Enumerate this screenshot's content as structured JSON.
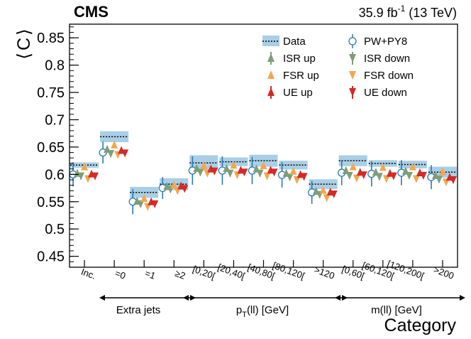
{
  "header": {
    "experiment": "CMS",
    "lumi_label": "35.9 fb",
    "lumi_sup": "-1",
    "energy": "(13 TeV)"
  },
  "chart_data": {
    "type": "scatter",
    "ylabel_open": "⟨",
    "ylabel_var": "C",
    "ylabel_close": "⟩",
    "xlabel": "Category",
    "ylim": [
      0.43,
      0.875
    ],
    "yticks": [
      0.45,
      0.5,
      0.55,
      0.6,
      0.65,
      0.7,
      0.75,
      0.8,
      0.85
    ],
    "ytick_labels": [
      "0.45",
      "0.5",
      "0.55",
      "0.6",
      "0.65",
      "0.7",
      "0.75",
      "0.8",
      "0.85"
    ],
    "categories": [
      "Inc.",
      "=0",
      "=1",
      "≥2",
      "[0,20[",
      "[20,40[",
      "[40,80[",
      "[80,120[",
      ">120",
      "[0,60[",
      "[60,120[",
      "[120,200[",
      ">200"
    ],
    "groups": [
      {
        "label": "Extra jets",
        "first": 1,
        "last": 3
      },
      {
        "label_main": "p",
        "label_sub": "T",
        "label_rest": "(ll) [GeV]",
        "first": 4,
        "last": 8
      },
      {
        "label": "m(ll) [GeV]",
        "first": 9,
        "last": 12
      }
    ],
    "data": {
      "name": "Data",
      "values": [
        0.617,
        0.669,
        0.567,
        0.582,
        0.621,
        0.623,
        0.625,
        0.617,
        0.582,
        0.625,
        0.62,
        0.618,
        0.604
      ],
      "unc": [
        0.005,
        0.01,
        0.01,
        0.011,
        0.014,
        0.008,
        0.011,
        0.008,
        0.009,
        0.01,
        0.006,
        0.007,
        0.01
      ]
    },
    "series": [
      {
        "name": "PW+PY8",
        "marker": "open-circle",
        "color": "#2a79b3",
        "values": [
          0.6,
          0.64,
          0.55,
          0.575,
          0.607,
          0.607,
          0.607,
          0.599,
          0.567,
          0.603,
          0.601,
          0.603,
          0.595
        ],
        "err": [
          0.022,
          0.02,
          0.023,
          0.02,
          0.026,
          0.026,
          0.025,
          0.023,
          0.021,
          0.023,
          0.023,
          0.023,
          0.022
        ]
      },
      {
        "name": "ISR up",
        "marker": "triangle-up",
        "color": "#7d9e79",
        "values": [
          0.602,
          0.646,
          0.551,
          0.578,
          0.611,
          0.611,
          0.61,
          0.602,
          0.569,
          0.607,
          0.604,
          0.606,
          0.598
        ],
        "err": [
          0.006,
          0.006,
          0.006,
          0.006,
          0.006,
          0.006,
          0.006,
          0.006,
          0.006,
          0.006,
          0.006,
          0.006,
          0.006
        ]
      },
      {
        "name": "ISR down",
        "marker": "triangle-down",
        "color": "#7d9e79",
        "values": [
          0.597,
          0.638,
          0.546,
          0.573,
          0.604,
          0.602,
          0.602,
          0.595,
          0.563,
          0.598,
          0.596,
          0.598,
          0.591
        ],
        "err": [
          0.006,
          0.006,
          0.006,
          0.006,
          0.006,
          0.006,
          0.006,
          0.006,
          0.006,
          0.006,
          0.006,
          0.006,
          0.006
        ]
      },
      {
        "name": "FSR up",
        "marker": "triangle-up",
        "color": "#f4a64f",
        "values": [
          0.614,
          0.654,
          0.556,
          0.581,
          0.616,
          0.617,
          0.616,
          0.606,
          0.571,
          0.614,
          0.613,
          0.614,
          0.605
        ],
        "err": [
          0.0,
          0.0,
          0.0,
          0.0,
          0.0,
          0.0,
          0.0,
          0.0,
          0.0,
          0.0,
          0.0,
          0.0,
          0.0
        ]
      },
      {
        "name": "FSR down",
        "marker": "triangle-down",
        "color": "#f4a64f",
        "values": [
          0.592,
          0.636,
          0.541,
          0.57,
          0.602,
          0.599,
          0.597,
          0.59,
          0.557,
          0.593,
          0.592,
          0.592,
          0.586
        ],
        "err": [
          0.0,
          0.0,
          0.0,
          0.0,
          0.0,
          0.0,
          0.0,
          0.0,
          0.0,
          0.0,
          0.0,
          0.0,
          0.0
        ]
      },
      {
        "name": "UE up",
        "marker": "triangle-up",
        "color": "#d42a27",
        "values": [
          0.601,
          0.644,
          0.55,
          0.579,
          0.61,
          0.608,
          0.608,
          0.6,
          0.568,
          0.604,
          0.602,
          0.603,
          0.595
        ],
        "err": [
          0.004,
          0.004,
          0.004,
          0.004,
          0.004,
          0.004,
          0.004,
          0.004,
          0.004,
          0.004,
          0.004,
          0.004,
          0.004
        ]
      },
      {
        "name": "UE down",
        "marker": "triangle-down",
        "color": "#d42a27",
        "values": [
          0.597,
          0.639,
          0.546,
          0.574,
          0.606,
          0.604,
          0.604,
          0.596,
          0.564,
          0.599,
          0.597,
          0.598,
          0.59
        ],
        "err": [
          0.004,
          0.004,
          0.004,
          0.004,
          0.004,
          0.004,
          0.004,
          0.004,
          0.004,
          0.004,
          0.004,
          0.004,
          0.004
        ]
      }
    ],
    "legend_position": "top-right",
    "grid": false
  }
}
